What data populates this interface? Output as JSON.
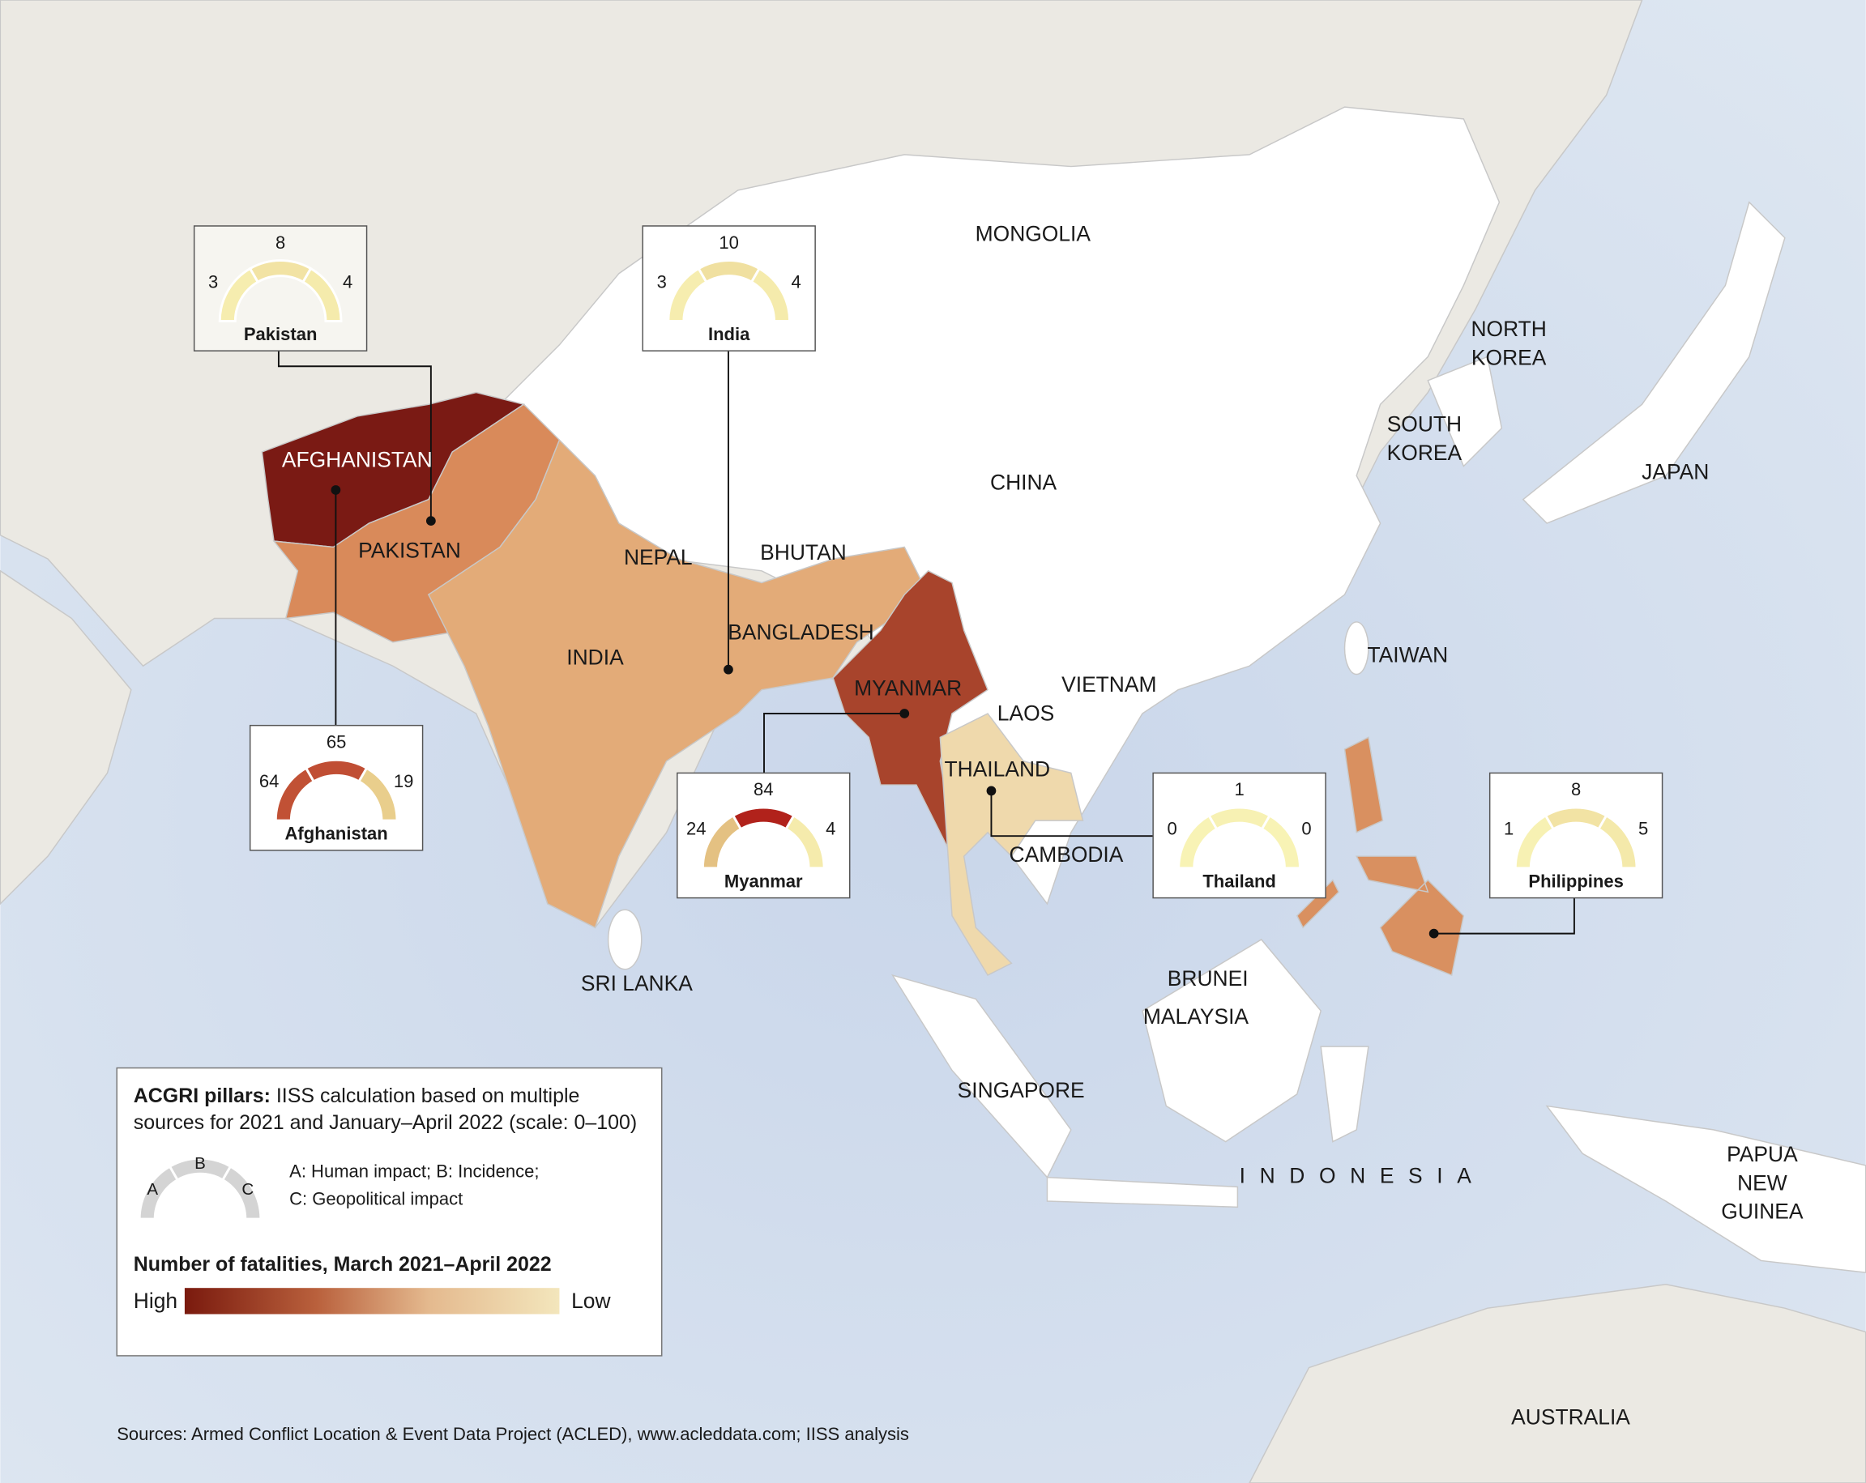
{
  "map": {
    "labels": [
      [
        "MONGOLIA"
      ],
      [
        "NORTH",
        "KOREA"
      ],
      [
        "SOUTH",
        "KOREA"
      ],
      [
        "CHINA"
      ],
      [
        "JAPAN"
      ],
      [
        "AFGHANISTAN"
      ],
      [
        "PAKISTAN"
      ],
      [
        "NEPAL"
      ],
      [
        "BHUTAN"
      ],
      [
        "BANGLADESH"
      ],
      [
        "INDIA"
      ],
      [
        "MYANMAR"
      ],
      [
        "VIETNAM"
      ],
      [
        "LAOS"
      ],
      [
        "TAIWAN"
      ],
      [
        "THAILAND"
      ],
      [
        "CAMBODIA"
      ],
      [
        "SRI LANKA"
      ],
      [
        "BRUNEI"
      ],
      [
        "MALAYSIA"
      ],
      [
        "SINGAPORE"
      ],
      [
        "INDONESIA"
      ],
      [
        "PAPUA",
        "NEW",
        "GUINEA"
      ],
      [
        "AUSTRALIA"
      ]
    ]
  },
  "gauges": [
    {
      "country": "Pakistan",
      "a": 3,
      "b": 8,
      "c": 4
    },
    {
      "country": "India",
      "a": 3,
      "b": 10,
      "c": 4
    },
    {
      "country": "Afghanistan",
      "a": 64,
      "b": 65,
      "c": 19
    },
    {
      "country": "Myanmar",
      "a": 24,
      "b": 84,
      "c": 4
    },
    {
      "country": "Thailand",
      "a": 0,
      "b": 1,
      "c": 0
    },
    {
      "country": "Philippines",
      "a": 1,
      "b": 8,
      "c": 5
    }
  ],
  "legend": {
    "pillars_title": "ACGRI pillars:",
    "pillars_lines": [
      "IISS calculation based on multiple",
      "sources for 2021 and January–April 2022 (scale: 0–100)"
    ],
    "key_letters": [
      "A",
      "B",
      "C"
    ],
    "key_lines": [
      "A: Human impact; B: Incidence;",
      "C: Geopolitical impact"
    ],
    "fatalities_title": "Number of fatalities, March 2021–April 2022",
    "high": "High",
    "low": "Low"
  },
  "source": "Sources: Armed Conflict Location & Event Data Project (ACLED), www.acleddata.com; IISS analysis"
}
